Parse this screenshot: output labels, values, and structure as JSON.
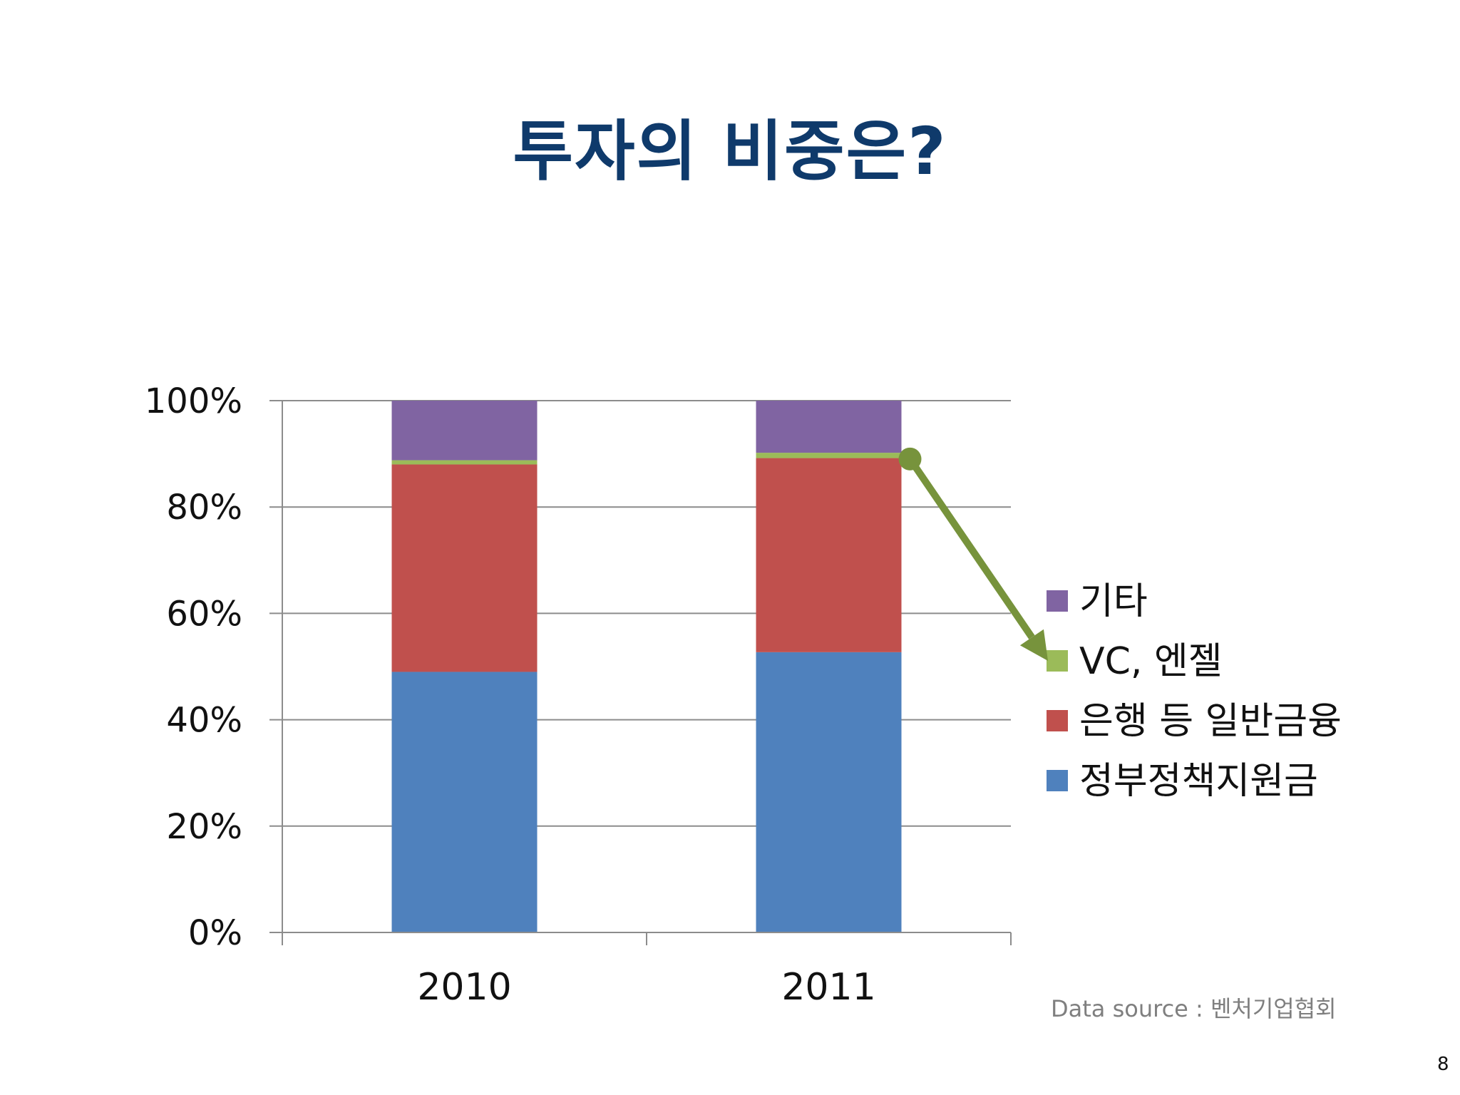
{
  "slide": {
    "title": "투자의 비중은?",
    "source": "Data source : 벤처기업협회",
    "page_number": "8"
  },
  "chart_data": {
    "type": "bar",
    "stacked": true,
    "percent_stacked": true,
    "categories": [
      "2010",
      "2011"
    ],
    "series": [
      {
        "name": "정부정책지원금",
        "color": "#4f81bd",
        "values": [
          49,
          52.7
        ]
      },
      {
        "name": "은행 등 일반금융",
        "color": "#c0504d",
        "values": [
          39,
          36.5
        ]
      },
      {
        "name": "VC, 엔젤",
        "color": "#9bbb59",
        "values": [
          0.8,
          1
        ]
      },
      {
        "name": "기타",
        "color": "#8064a2",
        "values": [
          11.2,
          9.8
        ]
      }
    ],
    "ylim": [
      0,
      100
    ],
    "yticks": [
      "0%",
      "20%",
      "40%",
      "60%",
      "80%",
      "100%"
    ],
    "grid": true,
    "legend_position": "right",
    "annotation": {
      "type": "arrow",
      "from": "VC, 엔젤 segment of 2011",
      "to": "VC, 엔젤 legend entry",
      "color": "#77933c"
    }
  }
}
